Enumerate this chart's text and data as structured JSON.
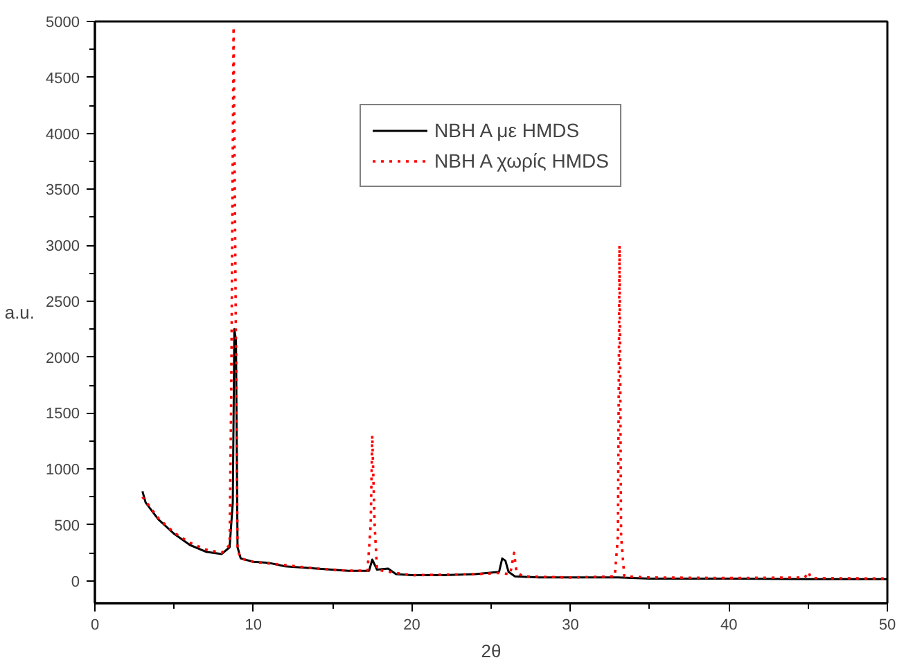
{
  "chart_data": {
    "type": "line",
    "xlabel": "2θ",
    "ylabel": "a.u.",
    "xlim": [
      0,
      50
    ],
    "xticks": [
      0,
      10,
      20,
      30,
      40,
      50
    ],
    "ylim": [
      -200,
      5000
    ],
    "yticks": [
      0,
      500,
      1000,
      1500,
      2000,
      2500,
      3000,
      3500,
      4000,
      4500,
      5000
    ],
    "grid": false,
    "legend": "top",
    "marker": "none",
    "series": [
      {
        "name": "NBH A με HMDS",
        "color": "#000000",
        "line_style": "solid",
        "x": [
          3,
          3.2,
          4,
          5,
          6,
          7,
          8,
          8.5,
          8.7,
          8.8,
          8.9,
          9.0,
          9.2,
          10,
          11,
          12,
          14,
          16,
          17.3,
          17.5,
          17.8,
          18.5,
          19,
          20,
          22,
          24,
          25.5,
          25.7,
          25.9,
          26.1,
          26.5,
          28,
          30,
          33,
          35,
          40,
          45,
          50
        ],
        "values": [
          800,
          700,
          550,
          420,
          320,
          260,
          240,
          300,
          700,
          2250,
          2150,
          300,
          200,
          170,
          160,
          130,
          110,
          90,
          90,
          190,
          100,
          110,
          60,
          50,
          50,
          60,
          80,
          200,
          180,
          80,
          40,
          30,
          30,
          30,
          20,
          20,
          15,
          15
        ]
      },
      {
        "name": "NBH A χωρίς HMDS",
        "color": "#ff0000",
        "line_style": "dotted",
        "x": [
          3,
          4,
          5,
          6,
          7,
          8,
          8.5,
          8.6,
          8.75,
          8.9,
          9.0,
          9.2,
          10,
          12,
          14,
          16,
          17.2,
          17.4,
          17.5,
          17.65,
          17.8,
          19,
          20,
          24,
          25.5,
          26.2,
          26.45,
          26.6,
          27,
          30,
          32.8,
          33.0,
          33.1,
          33.2,
          33.4,
          35,
          40,
          44.8,
          45,
          45.2,
          50
        ],
        "values": [
          750,
          560,
          430,
          340,
          280,
          250,
          320,
          1650,
          4950,
          2100,
          280,
          200,
          170,
          140,
          110,
          90,
          90,
          500,
          1300,
          500,
          100,
          70,
          50,
          60,
          70,
          60,
          250,
          80,
          40,
          30,
          40,
          400,
          3000,
          400,
          40,
          30,
          25,
          30,
          80,
          25,
          20
        ]
      }
    ]
  }
}
